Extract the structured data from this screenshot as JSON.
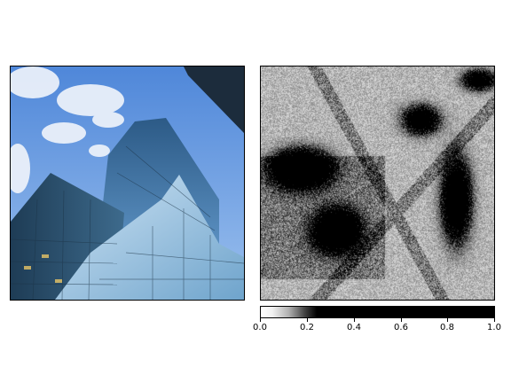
{
  "chart_data": [
    {
      "type": "image",
      "subject": "glass office towers against a blue sky with clouds",
      "colors": {
        "sky": "#6f9fe3",
        "cloud": "#eef3fb",
        "glass_dark": "#2a4b63",
        "glass_light": "#7fb0d6",
        "glass_front": "#a9cfe8"
      }
    },
    {
      "type": "heatmap",
      "colormap": "gray_r",
      "vmin": 0.0,
      "vmax": 1.0,
      "colorbar": {
        "orientation": "horizontal",
        "ticks": [
          0.0,
          0.2,
          0.4,
          0.6,
          0.8,
          1.0
        ],
        "tick_labels": [
          "0.0",
          "0.2",
          "0.4",
          "0.6",
          "0.8",
          "1.0"
        ]
      },
      "dark_regions": [
        {
          "name": "left-cluster",
          "intensity": 0.95
        },
        {
          "name": "center-cluster",
          "intensity": 0.9
        },
        {
          "name": "right-cluster",
          "intensity": 0.75
        },
        {
          "name": "upper-middle",
          "intensity": 0.6
        },
        {
          "name": "upper-right",
          "intensity": 0.55
        }
      ]
    }
  ]
}
